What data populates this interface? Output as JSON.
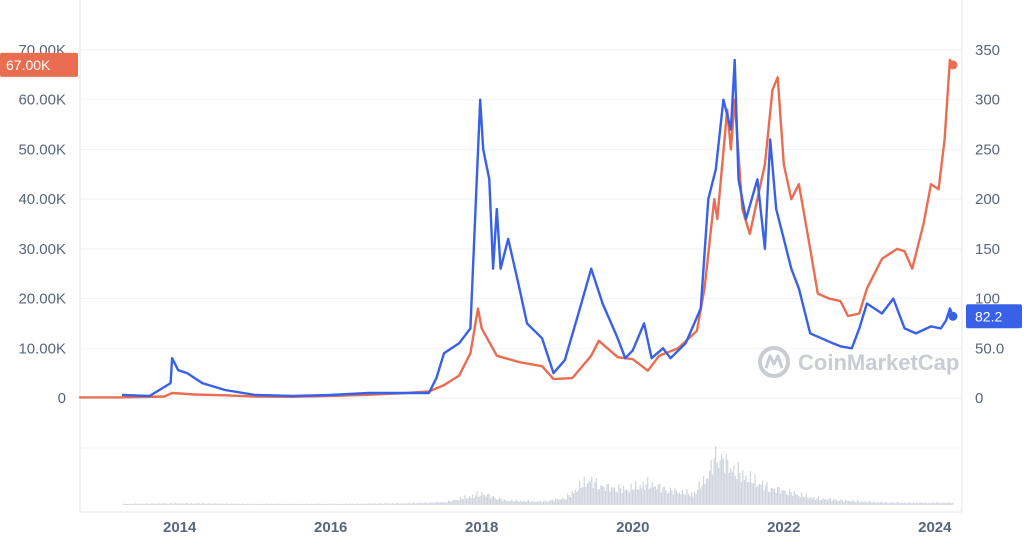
{
  "watermark": {
    "text": "CoinMarketCap",
    "icon": "coinmarketcap-logo-icon"
  },
  "colors": {
    "price_series": "#ea6d52",
    "secondary_series": "#3861e8",
    "grid": "#eff2f5",
    "axis_text": "#58667e",
    "volume": "#ced3dc"
  },
  "chart_data": {
    "type": "line",
    "title": "",
    "xlabel": "",
    "ylabel": "",
    "x_ticks": [
      "2014",
      "2016",
      "2018",
      "2020",
      "2022",
      "2024"
    ],
    "x_range": [
      2012.68,
      2024.36
    ],
    "left_axis": {
      "ticks": [
        "0",
        "10.00K",
        "20.00K",
        "30.00K",
        "40.00K",
        "50.00K",
        "60.00K",
        "70.00K"
      ],
      "tick_values": [
        0,
        10000,
        20000,
        30000,
        40000,
        50000,
        60000,
        70000
      ],
      "ylim": [
        0,
        70000
      ]
    },
    "right_axis": {
      "ticks": [
        "0",
        "50.0",
        "100",
        "150",
        "200",
        "250",
        "300",
        "350"
      ],
      "tick_values": [
        0,
        50,
        100,
        150,
        200,
        250,
        300,
        350
      ],
      "ylim": [
        0,
        350
      ]
    },
    "grid": true,
    "series": [
      {
        "axis": "left",
        "last_value_label": "67.00K",
        "points": [
          [
            2012.68,
            120
          ],
          [
            2013.2,
            130
          ],
          [
            2013.8,
            300
          ],
          [
            2013.9,
            1000
          ],
          [
            2014.0,
            900
          ],
          [
            2014.2,
            700
          ],
          [
            2014.6,
            550
          ],
          [
            2015.0,
            280
          ],
          [
            2015.5,
            250
          ],
          [
            2016.0,
            420
          ],
          [
            2016.5,
            650
          ],
          [
            2017.0,
            1000
          ],
          [
            2017.3,
            1300
          ],
          [
            2017.5,
            2600
          ],
          [
            2017.7,
            4500
          ],
          [
            2017.85,
            9000
          ],
          [
            2017.95,
            18000
          ],
          [
            2018.0,
            14000
          ],
          [
            2018.2,
            8500
          ],
          [
            2018.5,
            7200
          ],
          [
            2018.8,
            6400
          ],
          [
            2018.95,
            3800
          ],
          [
            2019.2,
            4000
          ],
          [
            2019.45,
            8500
          ],
          [
            2019.55,
            11500
          ],
          [
            2019.8,
            8200
          ],
          [
            2020.0,
            7800
          ],
          [
            2020.2,
            5500
          ],
          [
            2020.35,
            8500
          ],
          [
            2020.6,
            10000
          ],
          [
            2020.85,
            13500
          ],
          [
            2020.95,
            22000
          ],
          [
            2021.08,
            40000
          ],
          [
            2021.12,
            36000
          ],
          [
            2021.25,
            58000
          ],
          [
            2021.3,
            50000
          ],
          [
            2021.35,
            60000
          ],
          [
            2021.45,
            38000
          ],
          [
            2021.55,
            33000
          ],
          [
            2021.65,
            40000
          ],
          [
            2021.75,
            47000
          ],
          [
            2021.85,
            62000
          ],
          [
            2021.92,
            64500
          ],
          [
            2022.0,
            47000
          ],
          [
            2022.1,
            40000
          ],
          [
            2022.2,
            43000
          ],
          [
            2022.35,
            30000
          ],
          [
            2022.45,
            21000
          ],
          [
            2022.6,
            20000
          ],
          [
            2022.75,
            19500
          ],
          [
            2022.85,
            16500
          ],
          [
            2023.0,
            17000
          ],
          [
            2023.1,
            22000
          ],
          [
            2023.3,
            28000
          ],
          [
            2023.5,
            30000
          ],
          [
            2023.6,
            29500
          ],
          [
            2023.7,
            26000
          ],
          [
            2023.85,
            35000
          ],
          [
            2023.95,
            43000
          ],
          [
            2024.05,
            42000
          ],
          [
            2024.13,
            52000
          ],
          [
            2024.2,
            68000
          ],
          [
            2024.24,
            67000
          ]
        ]
      },
      {
        "axis": "right",
        "last_value_label": "82.2",
        "points": [
          [
            2013.25,
            3
          ],
          [
            2013.6,
            2
          ],
          [
            2013.88,
            15
          ],
          [
            2013.9,
            40
          ],
          [
            2013.98,
            28
          ],
          [
            2014.1,
            25
          ],
          [
            2014.3,
            15
          ],
          [
            2014.6,
            8
          ],
          [
            2015.0,
            3
          ],
          [
            2015.5,
            2
          ],
          [
            2016.0,
            3
          ],
          [
            2016.5,
            5
          ],
          [
            2017.0,
            5
          ],
          [
            2017.3,
            5
          ],
          [
            2017.4,
            20
          ],
          [
            2017.5,
            45
          ],
          [
            2017.7,
            55
          ],
          [
            2017.85,
            70
          ],
          [
            2017.98,
            300
          ],
          [
            2018.02,
            250
          ],
          [
            2018.1,
            220
          ],
          [
            2018.15,
            130
          ],
          [
            2018.2,
            190
          ],
          [
            2018.25,
            130
          ],
          [
            2018.35,
            160
          ],
          [
            2018.5,
            110
          ],
          [
            2018.6,
            75
          ],
          [
            2018.8,
            60
          ],
          [
            2018.95,
            25
          ],
          [
            2019.1,
            38
          ],
          [
            2019.3,
            90
          ],
          [
            2019.45,
            130
          ],
          [
            2019.6,
            95
          ],
          [
            2019.8,
            60
          ],
          [
            2019.9,
            40
          ],
          [
            2020.0,
            48
          ],
          [
            2020.15,
            75
          ],
          [
            2020.25,
            40
          ],
          [
            2020.4,
            50
          ],
          [
            2020.5,
            40
          ],
          [
            2020.7,
            55
          ],
          [
            2020.9,
            90
          ],
          [
            2021.0,
            200
          ],
          [
            2021.1,
            230
          ],
          [
            2021.2,
            300
          ],
          [
            2021.3,
            270
          ],
          [
            2021.35,
            340
          ],
          [
            2021.4,
            220
          ],
          [
            2021.5,
            180
          ],
          [
            2021.65,
            220
          ],
          [
            2021.75,
            150
          ],
          [
            2021.82,
            260
          ],
          [
            2021.9,
            190
          ],
          [
            2022.0,
            160
          ],
          [
            2022.1,
            130
          ],
          [
            2022.2,
            110
          ],
          [
            2022.35,
            65
          ],
          [
            2022.5,
            60
          ],
          [
            2022.65,
            55
          ],
          [
            2022.75,
            52
          ],
          [
            2022.9,
            50
          ],
          [
            2023.0,
            70
          ],
          [
            2023.1,
            95
          ],
          [
            2023.3,
            85
          ],
          [
            2023.45,
            100
          ],
          [
            2023.6,
            70
          ],
          [
            2023.75,
            65
          ],
          [
            2023.95,
            72
          ],
          [
            2024.08,
            70
          ],
          [
            2024.15,
            78
          ],
          [
            2024.2,
            90
          ],
          [
            2024.24,
            82.2
          ]
        ]
      }
    ],
    "volume": {
      "points": [
        [
          2013.25,
          0.02
        ],
        [
          2014.0,
          0.03
        ],
        [
          2015.0,
          0.02
        ],
        [
          2016.0,
          0.02
        ],
        [
          2017.0,
          0.03
        ],
        [
          2017.5,
          0.05
        ],
        [
          2018.0,
          0.2
        ],
        [
          2018.3,
          0.08
        ],
        [
          2018.8,
          0.06
        ],
        [
          2019.1,
          0.12
        ],
        [
          2019.4,
          0.45
        ],
        [
          2019.6,
          0.32
        ],
        [
          2019.9,
          0.28
        ],
        [
          2020.2,
          0.38
        ],
        [
          2020.5,
          0.25
        ],
        [
          2020.8,
          0.2
        ],
        [
          2021.0,
          0.55
        ],
        [
          2021.1,
          0.9
        ],
        [
          2021.3,
          0.65
        ],
        [
          2021.5,
          0.5
        ],
        [
          2021.8,
          0.3
        ],
        [
          2022.0,
          0.25
        ],
        [
          2022.4,
          0.12
        ],
        [
          2022.8,
          0.08
        ],
        [
          2023.2,
          0.05
        ],
        [
          2023.6,
          0.04
        ],
        [
          2024.0,
          0.04
        ],
        [
          2024.24,
          0.04
        ]
      ]
    }
  }
}
